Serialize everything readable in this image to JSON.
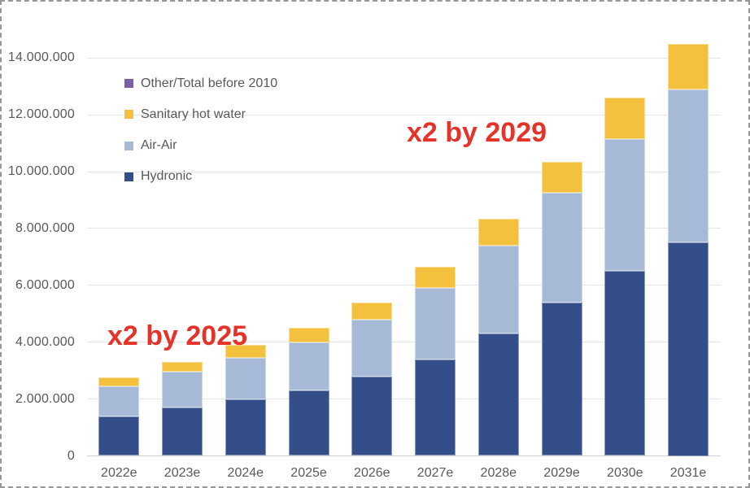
{
  "frame": {
    "border_color": "#979797",
    "background": "#ffffff"
  },
  "chart_data": {
    "type": "bar",
    "stacked": true,
    "title": "",
    "xlabel": "",
    "ylabel": "",
    "categories": [
      "2022e",
      "2023e",
      "2024e",
      "2025e",
      "2026e",
      "2027e",
      "2028e",
      "2029e",
      "2030e",
      "2031e"
    ],
    "series": [
      {
        "name": "Hydronic",
        "color": "#334E88",
        "values": [
          1400000,
          1700000,
          2000000,
          2300000,
          2800000,
          3400000,
          4300000,
          5400000,
          6500000,
          7500000
        ]
      },
      {
        "name": "Air-Air",
        "color": "#A6BAD8",
        "values": [
          1050000,
          1250000,
          1450000,
          1700000,
          2000000,
          2500000,
          3100000,
          3850000,
          4650000,
          5400000
        ]
      },
      {
        "name": "Sanitary hot water",
        "color": "#F3C13D",
        "values": [
          300000,
          350000,
          450000,
          500000,
          600000,
          750000,
          950000,
          1100000,
          1450000,
          1600000
        ]
      },
      {
        "name": "Other/Total before 2010",
        "color": "#7B60A5",
        "values": [
          0,
          0,
          0,
          0,
          0,
          0,
          0,
          0,
          0,
          0
        ]
      }
    ],
    "totals": [
      2750000,
      3300000,
      3900000,
      4500000,
      5400000,
      6650000,
      8350000,
      10350000,
      12600000,
      14500000
    ],
    "y_ticks": [
      {
        "value": 0,
        "label": "0"
      },
      {
        "value": 2000000,
        "label": "2.000.000"
      },
      {
        "value": 4000000,
        "label": "4.000.000"
      },
      {
        "value": 6000000,
        "label": "6.000.000"
      },
      {
        "value": 8000000,
        "label": "8.000.000"
      },
      {
        "value": 10000000,
        "label": "10.000.000"
      },
      {
        "value": 12000000,
        "label": "12.000.000"
      },
      {
        "value": 14000000,
        "label": "14.000.000"
      }
    ],
    "ylim": [
      0,
      14500000
    ],
    "grid": true,
    "legend_position": "upper-left-inside",
    "legend_order": [
      "Other/Total before 2010",
      "Sanitary hot water",
      "Air-Air",
      "Hydronic"
    ],
    "tick_text_color": "#595959",
    "gridline_color": "#e4e4e4"
  },
  "annotations": [
    {
      "text": "x2 by 2025",
      "color": "#E5332A"
    },
    {
      "text": "x2 by 2029",
      "color": "#E5332A"
    }
  ]
}
